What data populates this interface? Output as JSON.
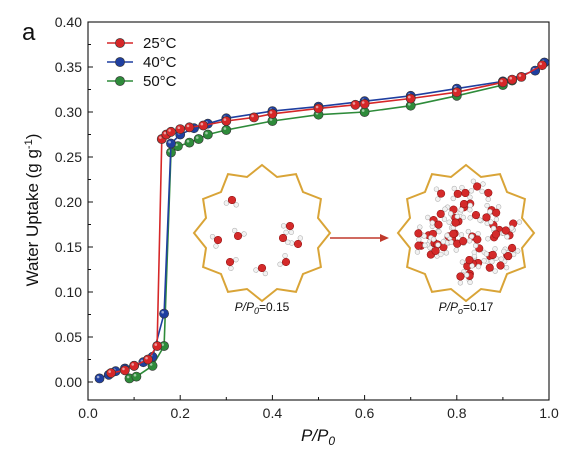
{
  "panel_letter": "a",
  "chart_data": {
    "type": "line",
    "xlabel_main": "P/P",
    "xlabel_sub": "0",
    "ylabel_main": "Water Uptake (g g",
    "ylabel_sup": "-1",
    "ylabel_close": ")",
    "xlim": [
      0.0,
      1.0
    ],
    "ylim": [
      -0.02,
      0.4
    ],
    "xticks": [
      "0.0",
      "0.2",
      "0.4",
      "0.6",
      "0.8",
      "1.0"
    ],
    "yticks": [
      "0.00",
      "0.05",
      "0.10",
      "0.15",
      "0.20",
      "0.25",
      "0.30",
      "0.35",
      "0.40"
    ],
    "grid": false,
    "legend_position": "top-left",
    "series": [
      {
        "name": "25°C",
        "color": "#d62728",
        "x": [
          0.05,
          0.08,
          0.1,
          0.13,
          0.15,
          0.16,
          0.17,
          0.18,
          0.2,
          0.22,
          0.25,
          0.3,
          0.36,
          0.4,
          0.5,
          0.58,
          0.6,
          0.7,
          0.8,
          0.9,
          0.92,
          0.94,
          0.985
        ],
        "y": [
          0.01,
          0.013,
          0.018,
          0.025,
          0.04,
          0.27,
          0.275,
          0.278,
          0.281,
          0.283,
          0.285,
          0.29,
          0.294,
          0.298,
          0.304,
          0.308,
          0.309,
          0.315,
          0.322,
          0.333,
          0.336,
          0.339,
          0.352
        ]
      },
      {
        "name": "40°C",
        "color": "#1f3fa0",
        "x": [
          0.025,
          0.045,
          0.06,
          0.08,
          0.1,
          0.12,
          0.14,
          0.165,
          0.18,
          0.2,
          0.23,
          0.26,
          0.3,
          0.4,
          0.5,
          0.6,
          0.7,
          0.8,
          0.9,
          0.97,
          0.99
        ],
        "y": [
          0.004,
          0.008,
          0.012,
          0.015,
          0.018,
          0.022,
          0.028,
          0.076,
          0.265,
          0.275,
          0.282,
          0.287,
          0.293,
          0.301,
          0.306,
          0.312,
          0.318,
          0.326,
          0.334,
          0.346,
          0.355
        ]
      },
      {
        "name": "50°C",
        "color": "#2e8b3a",
        "x": [
          0.09,
          0.105,
          0.14,
          0.165,
          0.18,
          0.195,
          0.22,
          0.24,
          0.26,
          0.3,
          0.4,
          0.5,
          0.6,
          0.7,
          0.8,
          0.9,
          0.92
        ],
        "y": [
          0.004,
          0.006,
          0.018,
          0.04,
          0.255,
          0.262,
          0.266,
          0.27,
          0.275,
          0.28,
          0.29,
          0.297,
          0.3,
          0.307,
          0.318,
          0.33,
          0.335
        ]
      }
    ]
  },
  "inset": {
    "left_label_main": "P/P",
    "left_label_sub": "0",
    "left_label_value": "=0.15",
    "right_label_main": "P/P",
    "right_label_sub": "o",
    "right_label_value": "=0.17"
  }
}
